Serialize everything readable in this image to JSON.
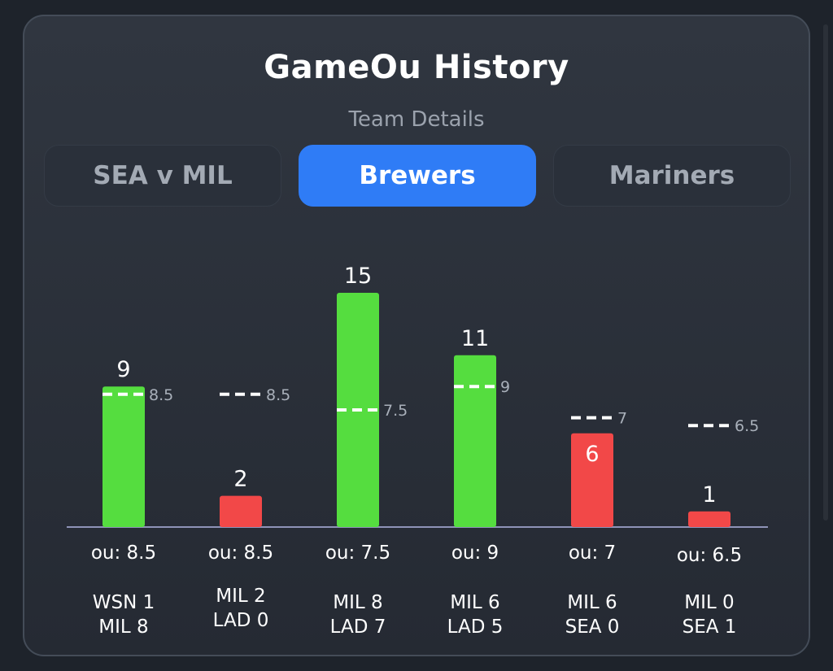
{
  "title": "GameOu History",
  "subtitle": "Team Details",
  "tabs": [
    {
      "label": "SEA v MIL",
      "active": false
    },
    {
      "label": "Brewers",
      "active": true
    },
    {
      "label": "Mariners",
      "active": false
    }
  ],
  "colors": {
    "over": "#55dd3f",
    "under": "#f24848",
    "accent": "#2f7cf6"
  },
  "chart_data": {
    "type": "bar",
    "categories": [
      "WSN 1 / MIL 8",
      "MIL 2 / LAD 0",
      "MIL 8 / LAD 7",
      "MIL 6 / LAD 5",
      "MIL 6 / SEA 0",
      "MIL 0 / SEA 1"
    ],
    "values": [
      9,
      2,
      15,
      11,
      6,
      1
    ],
    "ou_lines": [
      8.5,
      8.5,
      7.5,
      9,
      7,
      6.5
    ],
    "ou_labels": [
      "ou: 8.5",
      "ou: 8.5",
      "ou: 7.5",
      "ou: 9",
      "ou: 7",
      "ou: 6.5"
    ],
    "matchups": [
      [
        "WSN 1",
        "MIL 8"
      ],
      [
        "MIL 2",
        "LAD 0"
      ],
      [
        "MIL 8",
        "LAD 7"
      ],
      [
        "MIL 6",
        "LAD 5"
      ],
      [
        "MIL 6",
        "SEA 0"
      ],
      [
        "MIL 0",
        "SEA 1"
      ]
    ],
    "result": [
      "over",
      "under",
      "over",
      "over",
      "under",
      "under"
    ],
    "ylim": [
      0,
      17
    ],
    "grid": false,
    "legend": "none"
  }
}
